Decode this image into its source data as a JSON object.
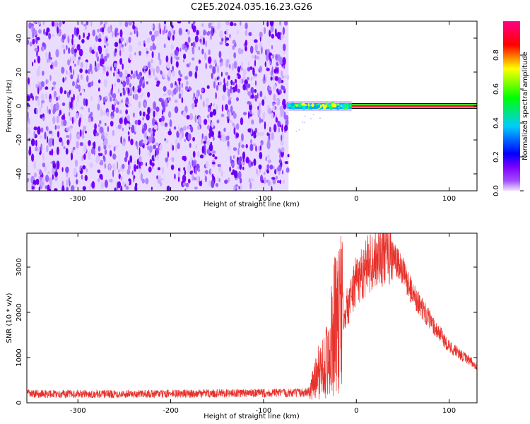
{
  "title": "C2E5.2024.035.16.23.G26",
  "chart_data": [
    {
      "type": "heatmap",
      "xlabel": "Height of straight line (km)",
      "ylabel": "Frequency (Hz)",
      "xlim": [
        -355,
        130
      ],
      "ylim": [
        -50,
        50
      ],
      "xticks": [
        -300,
        -200,
        -100,
        0,
        100
      ],
      "yticks": [
        -40,
        -20,
        0,
        20,
        40
      ],
      "noise_region_x": [
        -355,
        -73
      ],
      "signal_frequency_hz": 0,
      "colorbar": {
        "label": "Normalized spectral amplitude",
        "range": [
          0.0,
          1.0
        ],
        "ticks": [
          "0.0",
          "0.2",
          "0.4",
          "0.6",
          "0.8"
        ],
        "colors": [
          "#f0e6ff",
          "#7b00ff",
          "#0000ff",
          "#00ccff",
          "#00ff00",
          "#ffff00",
          "#ff0000",
          "#ff0088"
        ]
      }
    },
    {
      "type": "line",
      "xlabel": "Height of straight line (km)",
      "ylabel": "SNR (10 * v/v)",
      "xlim": [
        -355,
        130
      ],
      "ylim": [
        0,
        3750
      ],
      "xticks": [
        -300,
        -200,
        -100,
        0,
        100
      ],
      "yticks": [
        0,
        1000,
        2000,
        3000
      ],
      "color": "#e8302a",
      "series": [
        {
          "x": [
            -355,
            -300,
            -250,
            -200,
            -150,
            -100,
            -60,
            -50,
            -40,
            -30,
            -25,
            -20,
            -10,
            0,
            10,
            20,
            30,
            40,
            50,
            60,
            80,
            100,
            120,
            130
          ],
          "values": [
            200,
            195,
            195,
            200,
            210,
            215,
            220,
            250,
            700,
            1000,
            1600,
            1900,
            2100,
            2700,
            3000,
            3250,
            3300,
            3200,
            2900,
            2450,
            1800,
            1250,
            950,
            820
          ]
        }
      ]
    }
  ]
}
